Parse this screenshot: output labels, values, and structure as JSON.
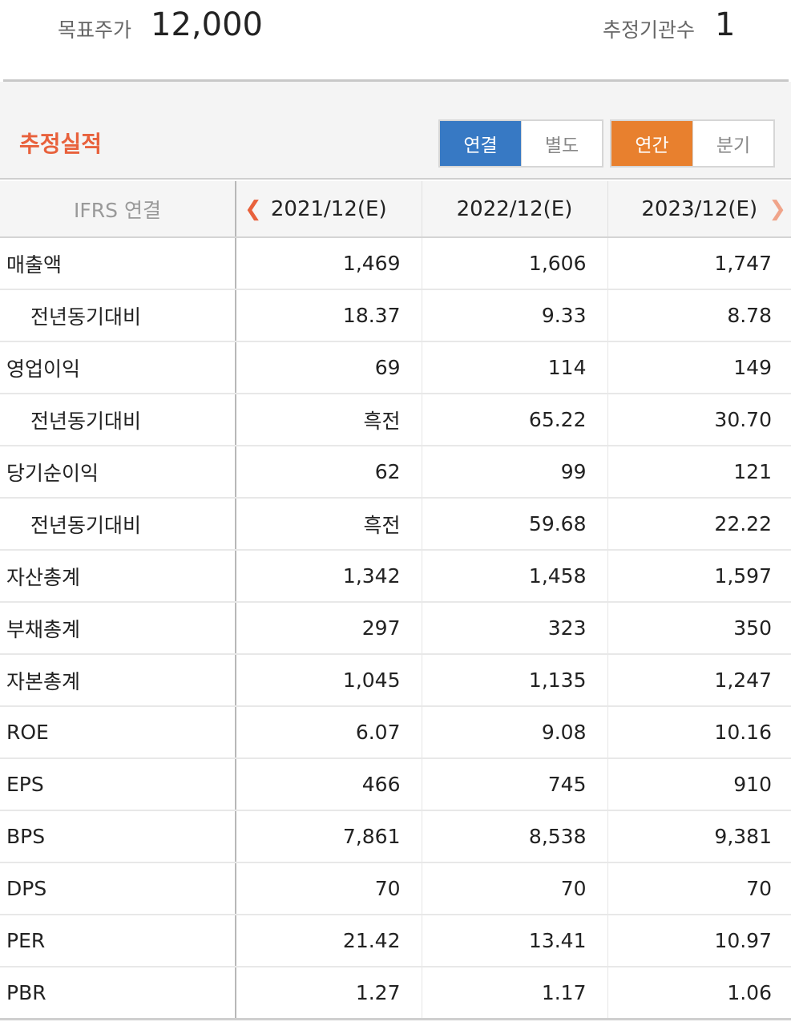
{
  "header": {
    "target_price_label": "목표주가",
    "target_price_value": "12,000",
    "institutions_label": "추정기관수",
    "institutions_value": "1"
  },
  "section": {
    "title": "추정실적",
    "consolidation_tabs": [
      {
        "label": "연결",
        "active": true
      },
      {
        "label": "별도",
        "active": false
      }
    ],
    "period_tabs": [
      {
        "label": "연간",
        "active": true
      },
      {
        "label": "분기",
        "active": false
      }
    ]
  },
  "colors": {
    "accent_orange": "#e8802e",
    "accent_blue": "#3779c4",
    "title_red": "#e8613c"
  },
  "table": {
    "corner_label": "IFRS 연결",
    "columns": [
      "2021/12(E)",
      "2022/12(E)",
      "2023/12(E)"
    ],
    "rows": [
      {
        "label": "매출액",
        "sub": false,
        "values": [
          "1,469",
          "1,606",
          "1,747"
        ]
      },
      {
        "label": "전년동기대비",
        "sub": true,
        "values": [
          "18.37",
          "9.33",
          "8.78"
        ]
      },
      {
        "label": "영업이익",
        "sub": false,
        "values": [
          "69",
          "114",
          "149"
        ]
      },
      {
        "label": "전년동기대비",
        "sub": true,
        "values": [
          "흑전",
          "65.22",
          "30.70"
        ]
      },
      {
        "label": "당기순이익",
        "sub": false,
        "values": [
          "62",
          "99",
          "121"
        ]
      },
      {
        "label": "전년동기대비",
        "sub": true,
        "values": [
          "흑전",
          "59.68",
          "22.22"
        ]
      },
      {
        "label": "자산총계",
        "sub": false,
        "values": [
          "1,342",
          "1,458",
          "1,597"
        ]
      },
      {
        "label": "부채총계",
        "sub": false,
        "values": [
          "297",
          "323",
          "350"
        ]
      },
      {
        "label": "자본총계",
        "sub": false,
        "values": [
          "1,045",
          "1,135",
          "1,247"
        ]
      },
      {
        "label": "ROE",
        "sub": false,
        "values": [
          "6.07",
          "9.08",
          "10.16"
        ]
      },
      {
        "label": "EPS",
        "sub": false,
        "values": [
          "466",
          "745",
          "910"
        ]
      },
      {
        "label": "BPS",
        "sub": false,
        "values": [
          "7,861",
          "8,538",
          "9,381"
        ]
      },
      {
        "label": "DPS",
        "sub": false,
        "values": [
          "70",
          "70",
          "70"
        ]
      },
      {
        "label": "PER",
        "sub": false,
        "values": [
          "21.42",
          "13.41",
          "10.97"
        ]
      },
      {
        "label": "PBR",
        "sub": false,
        "values": [
          "1.27",
          "1.17",
          "1.06"
        ]
      }
    ]
  }
}
